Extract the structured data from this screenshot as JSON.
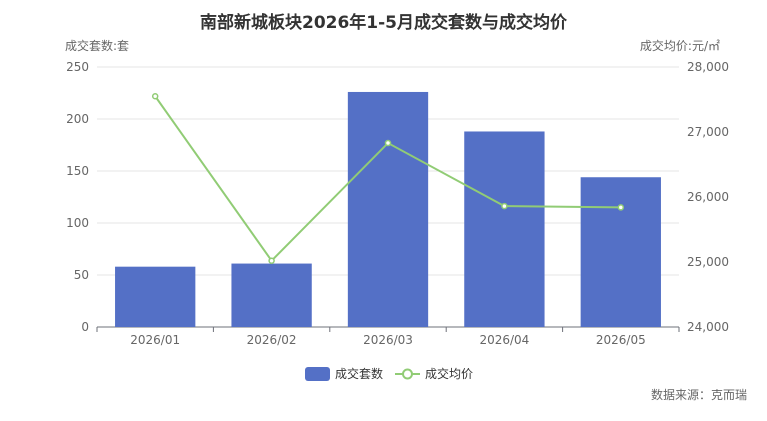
{
  "chart_data": {
    "type": "bar",
    "title": "南部新城板块2026年1-5月成交套数与成交均价",
    "categories": [
      "2026/01",
      "2026/02",
      "2026/03",
      "2026/04",
      "2026/05"
    ],
    "series": [
      {
        "name": "成交套数",
        "type": "bar",
        "axis": "left",
        "color": "#5470c6",
        "values": [
          58,
          61,
          226,
          188,
          144
        ]
      },
      {
        "name": "成交均价",
        "type": "line",
        "axis": "right",
        "color": "#91cc75",
        "values": [
          27550,
          25020,
          26830,
          25860,
          25840
        ]
      }
    ],
    "ylabel": "成交套数:套",
    "ylim": [
      0,
      250
    ],
    "yticks": [
      "0",
      "50",
      "100",
      "150",
      "200",
      "250"
    ],
    "y2label": "成交均价:元/㎡",
    "y2lim": [
      24000,
      28000
    ],
    "y2ticks": [
      "24,000",
      "25,000",
      "26,000",
      "27,000",
      "28,000"
    ],
    "grid": true,
    "legend": "bottom-center"
  },
  "source": "数据来源：克而瑞"
}
